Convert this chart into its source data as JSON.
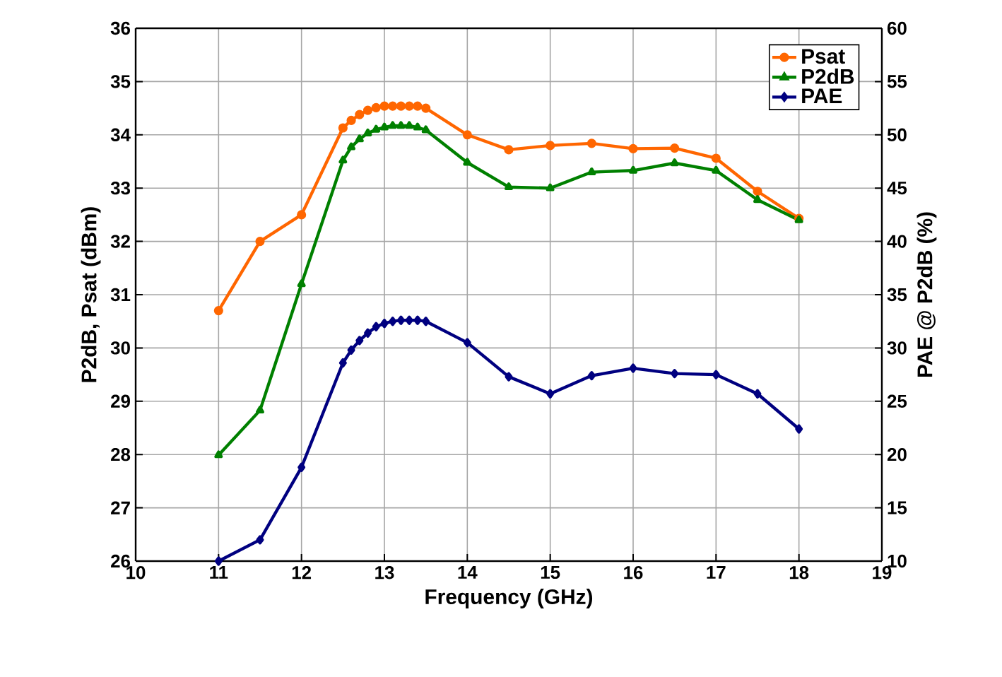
{
  "chart_data": {
    "type": "line",
    "xlabel": "Frequency (GHz)",
    "ylabel": "P2dB, Psat (dBm)",
    "y2label": "PAE @ P2dB (%)",
    "x": [
      11,
      11.5,
      12,
      12.5,
      12.6,
      12.7,
      12.8,
      12.9,
      13.0,
      13.1,
      13.2,
      13.3,
      13.4,
      13.5,
      14,
      14.5,
      15,
      15.5,
      16,
      16.5,
      17,
      17.5,
      18
    ],
    "series": [
      {
        "name": "Psat",
        "color": "#ff6600",
        "marker": "circle",
        "values": [
          30.7,
          32.0,
          32.5,
          34.13,
          34.27,
          34.38,
          34.46,
          34.51,
          34.54,
          34.54,
          34.54,
          34.54,
          34.54,
          34.5,
          34.0,
          33.72,
          33.8,
          33.84,
          33.74,
          33.75,
          33.56,
          32.94,
          32.43
        ]
      },
      {
        "name": "P2dB",
        "color": "#008000",
        "marker": "triangle",
        "values": [
          27.99,
          28.83,
          31.2,
          33.52,
          33.77,
          33.92,
          34.03,
          34.1,
          34.14,
          34.17,
          34.17,
          34.17,
          34.14,
          34.09,
          33.48,
          33.02,
          33.0,
          33.3,
          33.33,
          33.47,
          33.33,
          32.78,
          32.4
        ]
      },
      {
        "name": "PAE",
        "color": "#000080",
        "marker": "diamond",
        "axis": "y2",
        "values": [
          10.0,
          12.0,
          18.8,
          28.6,
          29.8,
          30.7,
          31.4,
          32.0,
          32.3,
          32.5,
          32.6,
          32.6,
          32.6,
          32.5,
          30.5,
          27.3,
          25.7,
          27.4,
          28.1,
          27.6,
          27.5,
          25.7,
          22.4
        ]
      }
    ],
    "xlim": [
      10,
      19
    ],
    "xticks": [
      10,
      11,
      12,
      13,
      14,
      15,
      16,
      17,
      18,
      19
    ],
    "ylim": [
      26,
      36
    ],
    "yticks": [
      26,
      27,
      28,
      29,
      30,
      31,
      32,
      33,
      34,
      35,
      36
    ],
    "y2lim": [
      10,
      60
    ],
    "y2ticks": [
      10,
      15,
      20,
      25,
      30,
      35,
      40,
      45,
      50,
      55,
      60
    ],
    "grid": true,
    "legend": "top right",
    "line_style": "solid"
  }
}
